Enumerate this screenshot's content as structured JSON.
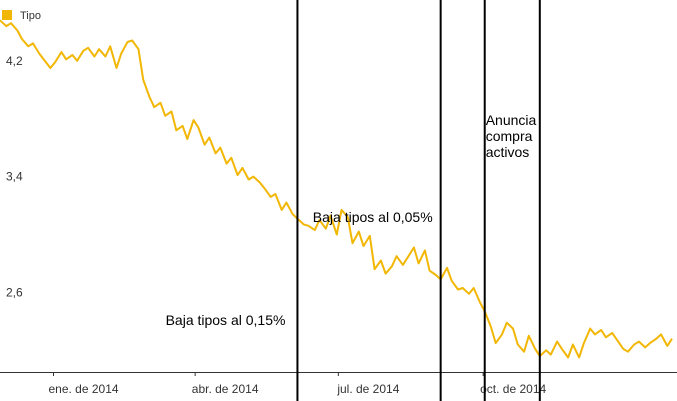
{
  "chart_data": {
    "type": "line",
    "legend": {
      "label": "Tipo",
      "placement": "top-left"
    },
    "colors": {
      "line": "#f2b705",
      "axis": "#333333",
      "vline": "#000000"
    },
    "y_ticks": [
      "4,2",
      "3,4",
      "2,6"
    ],
    "y_tick_values": [
      4.2,
      3.4,
      2.6
    ],
    "ylim": [
      2.05,
      4.62
    ],
    "xlim": [
      "2013-11-28",
      "2015-01-29"
    ],
    "x_ticks": [
      {
        "label": "ene. de 2014",
        "date": "2014-01-01"
      },
      {
        "label": "abr. de 2014",
        "date": "2014-04-01"
      },
      {
        "label": "jul. de 2014",
        "date": "2014-07-01"
      },
      {
        "label": "oct. de 2014",
        "date": "2014-10-01"
      }
    ],
    "annotations": [
      {
        "date": "2014-06-05",
        "lines": [
          "Baja tipos al 0,15%"
        ]
      },
      {
        "date": "2014-09-04",
        "lines": [
          "Baja tipos al 0,05%"
        ]
      },
      {
        "date": "2014-10-02",
        "lines": [
          "Anuncia",
          "compra",
          "activos"
        ]
      },
      {
        "date": "2014-11-06",
        "lines": []
      }
    ],
    "series": [
      {
        "name": "Tipo",
        "x": [
          "2013-11-28",
          "2013-12-02",
          "2013-12-05",
          "2013-12-09",
          "2013-12-12",
          "2013-12-16",
          "2013-12-19",
          "2013-12-23",
          "2013-12-30",
          "2014-01-02",
          "2014-01-06",
          "2014-01-09",
          "2014-01-13",
          "2014-01-16",
          "2014-01-20",
          "2014-01-23",
          "2014-01-27",
          "2014-01-30",
          "2014-02-03",
          "2014-02-06",
          "2014-02-10",
          "2014-02-13",
          "2014-02-17",
          "2014-02-20",
          "2014-02-24",
          "2014-02-27",
          "2014-03-03",
          "2014-03-06",
          "2014-03-10",
          "2014-03-13",
          "2014-03-17",
          "2014-03-20",
          "2014-03-24",
          "2014-03-27",
          "2014-03-31",
          "2014-04-03",
          "2014-04-07",
          "2014-04-10",
          "2014-04-14",
          "2014-04-17",
          "2014-04-21",
          "2014-04-24",
          "2014-04-28",
          "2014-05-01",
          "2014-05-05",
          "2014-05-08",
          "2014-05-12",
          "2014-05-15",
          "2014-05-19",
          "2014-05-22",
          "2014-05-26",
          "2014-05-29",
          "2014-06-02",
          "2014-06-05",
          "2014-06-09",
          "2014-06-12",
          "2014-06-16",
          "2014-06-19",
          "2014-06-23",
          "2014-06-26",
          "2014-06-30",
          "2014-07-03",
          "2014-07-07",
          "2014-07-10",
          "2014-07-14",
          "2014-07-17",
          "2014-07-21",
          "2014-07-24",
          "2014-07-28",
          "2014-07-31",
          "2014-08-04",
          "2014-08-07",
          "2014-08-11",
          "2014-08-14",
          "2014-08-18",
          "2014-08-21",
          "2014-08-25",
          "2014-08-28",
          "2014-09-01",
          "2014-09-04",
          "2014-09-08",
          "2014-09-11",
          "2014-09-15",
          "2014-09-18",
          "2014-09-22",
          "2014-09-25",
          "2014-09-29",
          "2014-10-02",
          "2014-10-06",
          "2014-10-09",
          "2014-10-13",
          "2014-10-16",
          "2014-10-20",
          "2014-10-23",
          "2014-10-27",
          "2014-10-30",
          "2014-11-03",
          "2014-11-06",
          "2014-11-10",
          "2014-11-13",
          "2014-11-17",
          "2014-11-20",
          "2014-11-24",
          "2014-11-27",
          "2014-12-01",
          "2014-12-04",
          "2014-12-08",
          "2014-12-11",
          "2014-12-15",
          "2014-12-18",
          "2014-12-22",
          "2014-12-29",
          "2015-01-01",
          "2015-01-05",
          "2015-01-08",
          "2015-01-12",
          "2015-01-15",
          "2015-01-19",
          "2015-01-22",
          "2015-01-26",
          "2015-01-29"
        ],
        "y": [
          4.48,
          4.44,
          4.46,
          4.41,
          4.35,
          4.3,
          4.32,
          4.25,
          4.15,
          4.19,
          4.26,
          4.21,
          4.24,
          4.2,
          4.27,
          4.29,
          4.23,
          4.28,
          4.23,
          4.3,
          4.15,
          4.25,
          4.33,
          4.34,
          4.28,
          4.07,
          3.95,
          3.88,
          3.91,
          3.82,
          3.85,
          3.72,
          3.75,
          3.66,
          3.79,
          3.74,
          3.62,
          3.67,
          3.56,
          3.6,
          3.49,
          3.53,
          3.41,
          3.46,
          3.38,
          3.4,
          3.36,
          3.32,
          3.26,
          3.28,
          3.17,
          3.22,
          3.14,
          3.11,
          3.07,
          3.06,
          3.03,
          3.1,
          3.04,
          3.13,
          3.0,
          3.17,
          3.12,
          2.94,
          3.02,
          2.92,
          2.99,
          2.76,
          2.82,
          2.73,
          2.78,
          2.85,
          2.79,
          2.84,
          2.91,
          2.8,
          2.89,
          2.75,
          2.72,
          2.69,
          2.77,
          2.68,
          2.62,
          2.63,
          2.59,
          2.63,
          2.53,
          2.47,
          2.36,
          2.25,
          2.31,
          2.39,
          2.35,
          2.24,
          2.19,
          2.3,
          2.21,
          2.16,
          2.2,
          2.17,
          2.26,
          2.21,
          2.15,
          2.24,
          2.15,
          2.25,
          2.35,
          2.31,
          2.34,
          2.29,
          2.32,
          2.21,
          2.19,
          2.24,
          2.26,
          2.22,
          2.25,
          2.28,
          2.31,
          2.23,
          2.28
        ]
      }
    ]
  }
}
